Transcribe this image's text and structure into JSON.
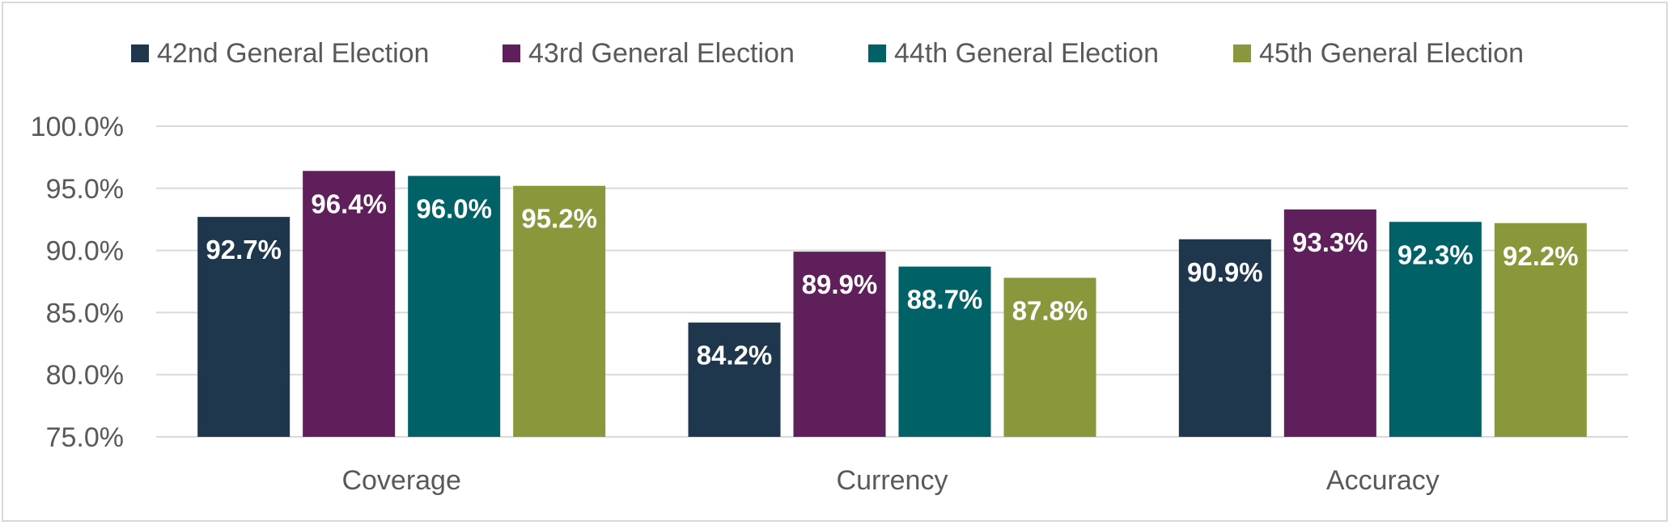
{
  "chart_data": {
    "type": "bar",
    "title": "",
    "xlabel": "",
    "ylabel": "",
    "categories": [
      "Coverage",
      "Currency",
      "Accuracy"
    ],
    "series": [
      {
        "name": "42nd General Election",
        "color": "#1f374d",
        "values": [
          92.7,
          84.2,
          90.9
        ],
        "labels": [
          "92.7%",
          "84.2%",
          "90.9%"
        ]
      },
      {
        "name": "43rd General Election",
        "color": "#5f1f5a",
        "values": [
          96.4,
          89.9,
          93.3
        ],
        "labels": [
          "96.4%",
          "89.9%",
          "93.3%"
        ]
      },
      {
        "name": "44th General Election",
        "color": "#006266",
        "values": [
          96.0,
          88.7,
          92.3
        ],
        "labels": [
          "96.0%",
          "88.7%",
          "92.3%"
        ]
      },
      {
        "name": "45th General Election",
        "color": "#8a973a",
        "values": [
          95.2,
          87.8,
          92.2
        ],
        "labels": [
          "95.2%",
          "87.8%",
          "92.2%"
        ]
      }
    ],
    "ylim": [
      75,
      100
    ],
    "yticks": [
      75,
      80,
      85,
      90,
      95,
      100
    ],
    "ytick_labels": [
      "75.0%",
      "80.0%",
      "85.0%",
      "90.0%",
      "95.0%",
      "100.0%"
    ],
    "grid": true,
    "legend_position": "top"
  }
}
